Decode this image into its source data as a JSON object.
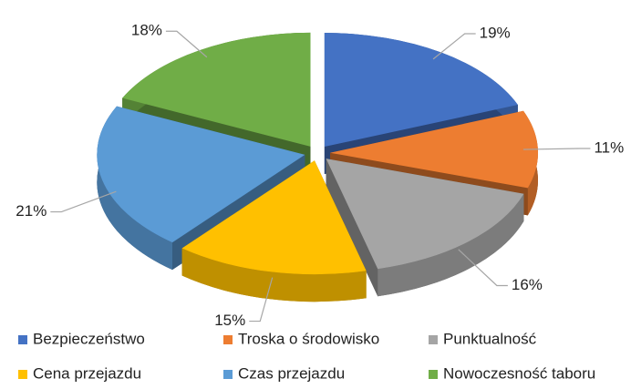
{
  "chart_data": {
    "type": "pie",
    "categories": [
      "Bezpieczeństwo",
      "Troska o środowisko",
      "Punktualność",
      "Cena przejazdu",
      "Czas przejazdu",
      "Nowoczesność taboru"
    ],
    "values": [
      19,
      11,
      16,
      15,
      21,
      18
    ],
    "value_labels": [
      "19%",
      "11%",
      "16%",
      "15%",
      "21%",
      "18%"
    ],
    "colors": [
      "#4472c4",
      "#ed7d31",
      "#a5a5a5",
      "#ffc000",
      "#5b9bd5",
      "#70ad47"
    ],
    "legend": "bottom"
  }
}
